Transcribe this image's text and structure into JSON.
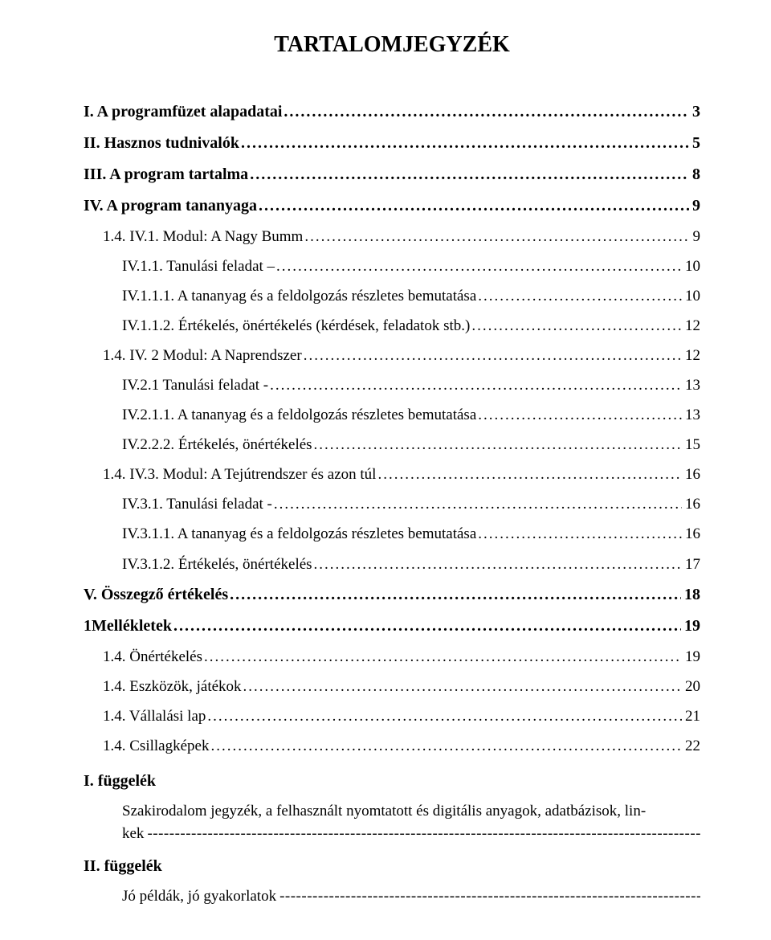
{
  "title": "TARTALOMJEGYZÉK",
  "leaders": {
    "dots": "..............................................................................................................................................................................",
    "dashes": "-----------------------------------------------------------------------------------------------------------------------------------------------------------"
  },
  "toc": [
    {
      "level": 0,
      "label": "I. A programfüzet alapadatai",
      "page": "3"
    },
    {
      "level": 0,
      "label": "II. Hasznos tudnivalók",
      "page": "5"
    },
    {
      "level": 0,
      "label": "III. A program tartalma",
      "page": "8"
    },
    {
      "level": 0,
      "label": "IV. A program tananyaga",
      "page": "9"
    },
    {
      "level": 1,
      "label": "1.4. IV.1. Modul: A Nagy Bumm",
      "page": "9"
    },
    {
      "level": 2,
      "label": "IV.1.1. Tanulási feladat –",
      "page": "10"
    },
    {
      "level": 2,
      "label": "IV.1.1.1. A tananyag és a feldolgozás részletes bemutatása",
      "page": "10"
    },
    {
      "level": 2,
      "label": "IV.1.1.2. Értékelés, önértékelés (kérdések, feladatok stb.)",
      "page": "12"
    },
    {
      "level": 1,
      "label": "1.4. IV. 2 Modul: A Naprendszer",
      "page": "12"
    },
    {
      "level": 2,
      "label": "IV.2.1 Tanulási feladat -",
      "page": "13"
    },
    {
      "level": 2,
      "label": "IV.2.1.1. A tananyag és a feldolgozás részletes bemutatása",
      "page": "13"
    },
    {
      "level": 2,
      "label": "IV.2.2.2. Értékelés, önértékelés",
      "page": "15"
    },
    {
      "level": 1,
      "label": "1.4. IV.3. Modul: A Tejútrendszer és azon túl",
      "page": "16"
    },
    {
      "level": 2,
      "label": "IV.3.1. Tanulási feladat -",
      "page": "16"
    },
    {
      "level": 2,
      "label": "IV.3.1.1. A tananyag és a feldolgozás részletes bemutatása",
      "page": "16"
    },
    {
      "level": 2,
      "label": "IV.3.1.2. Értékelés, önértékelés",
      "page": "17"
    },
    {
      "level": 0,
      "label": "V. Összegző értékelés",
      "page": "18"
    },
    {
      "level": 0,
      "label": "1Mellékletek",
      "page": "19"
    },
    {
      "level": 1,
      "label": "1.4. Önértékelés",
      "page": "19"
    },
    {
      "level": 1,
      "label": "1.4. Eszközök, játékok",
      "page": "20"
    },
    {
      "level": 1,
      "label": "1.4. Vállalási lap",
      "page": "21"
    },
    {
      "level": 1,
      "label": "1.4. Csillagképek",
      "page": "22"
    }
  ],
  "appendix1": {
    "head": "I. függelék",
    "body_line1": "Szakirodalom jegyzék, a felhasznált nyomtatott és digitális anyagok, adatbázisok, lin-",
    "body_pre": "kek "
  },
  "appendix2": {
    "head": "II. függelék",
    "body_pre": "Jó példák, jó gyakorlatok "
  }
}
